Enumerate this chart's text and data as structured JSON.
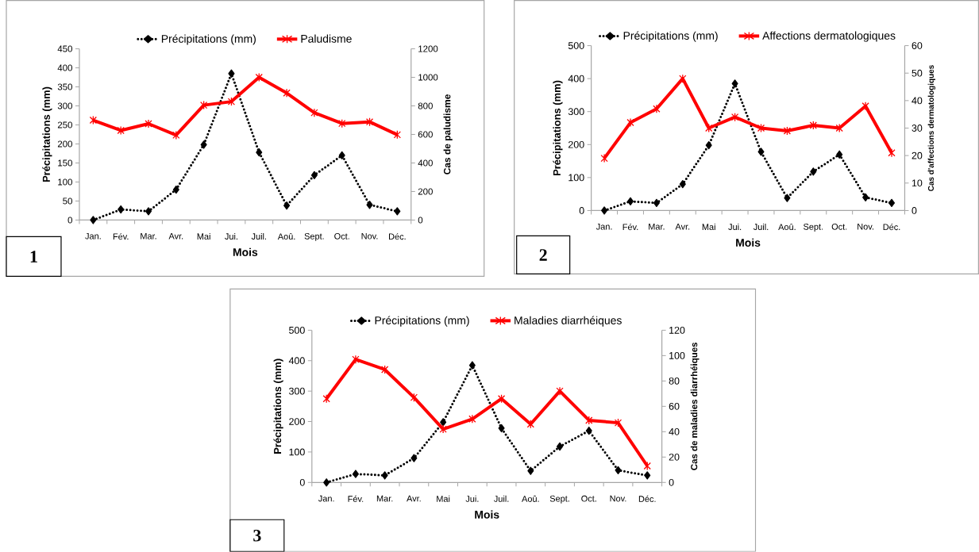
{
  "chart_data": [
    {
      "type": "line",
      "categories": [
        "Jan.",
        "Fév.",
        "Mar.",
        "Avr.",
        "Mai",
        "Jui.",
        "Juil.",
        "Aoû.",
        "Sept.",
        "Oct.",
        "Nov.",
        "Déc."
      ],
      "xlabel": "Mois",
      "ylabel": "Précipitations (mm)",
      "y2label": "Cas de paludisme",
      "ylim": [
        0,
        450
      ],
      "yticks": [
        0,
        50,
        100,
        150,
        200,
        250,
        300,
        350,
        400,
        450
      ],
      "y2lim": [
        0,
        1200
      ],
      "y2ticks": [
        0,
        200,
        400,
        600,
        800,
        1000,
        1200
      ],
      "legend": "top",
      "grid": false,
      "annotations": [
        "1"
      ],
      "series": [
        {
          "name": "Précipitations (mm)",
          "color": "#000000",
          "marker": "diamond",
          "line_style": "dotted",
          "values": [
            0,
            28,
            23,
            80,
            198,
            385,
            178,
            38,
            118,
            170,
            40,
            23
          ]
        },
        {
          "name": "Paludisme",
          "color": "#ff0000",
          "marker": "cross",
          "line_style": "solid",
          "axis": "y2",
          "values": [
            700,
            628,
            675,
            595,
            805,
            830,
            1000,
            890,
            752,
            677,
            688,
            598
          ]
        }
      ]
    },
    {
      "type": "line",
      "categories": [
        "Jan.",
        "Fév.",
        "Mar.",
        "Avr.",
        "Mai",
        "Jui.",
        "Juil.",
        "Aoû.",
        "Sept.",
        "Oct.",
        "Nov.",
        "Déc."
      ],
      "xlabel": "Mois",
      "ylabel": "Précipitations (mm)",
      "y2label": "Cas d'affections dermatologiques",
      "ylim": [
        0,
        500
      ],
      "yticks": [
        0,
        100,
        200,
        300,
        400,
        500
      ],
      "y2lim": [
        0,
        60
      ],
      "y2ticks": [
        0,
        10,
        20,
        30,
        40,
        50,
        60
      ],
      "legend": "top",
      "grid": false,
      "annotations": [
        "2"
      ],
      "series": [
        {
          "name": "Précipitations (mm)",
          "color": "#000000",
          "marker": "diamond",
          "line_style": "dotted",
          "values": [
            0,
            28,
            23,
            80,
            198,
            385,
            178,
            38,
            118,
            170,
            40,
            23
          ]
        },
        {
          "name": "Affections dermatologiques",
          "color": "#ff0000",
          "marker": "cross",
          "line_style": "solid",
          "axis": "y2",
          "values": [
            19,
            32,
            37,
            48,
            30,
            34,
            30,
            29,
            31,
            30,
            38,
            21
          ]
        }
      ]
    },
    {
      "type": "line",
      "categories": [
        "Jan.",
        "Fév.",
        "Mar.",
        "Avr.",
        "Mai",
        "Jui.",
        "Juil.",
        "Aoû.",
        "Sept.",
        "Oct.",
        "Nov.",
        "Déc."
      ],
      "xlabel": "Mois",
      "ylabel": "Précipitations (mm)",
      "y2label": "Cas de maladies diarrhéiques",
      "ylim": [
        0,
        500
      ],
      "yticks": [
        0,
        100,
        200,
        300,
        400,
        500
      ],
      "y2lim": [
        0,
        120
      ],
      "y2ticks": [
        0,
        20,
        40,
        60,
        80,
        100,
        120
      ],
      "legend": "top",
      "grid": false,
      "annotations": [
        "3"
      ],
      "series": [
        {
          "name": "Précipitations (mm)",
          "color": "#000000",
          "marker": "diamond",
          "line_style": "dotted",
          "values": [
            0,
            28,
            23,
            80,
            198,
            385,
            178,
            38,
            118,
            170,
            40,
            23
          ]
        },
        {
          "name": "Maladies diarrhéiques",
          "color": "#ff0000",
          "marker": "cross",
          "line_style": "solid",
          "axis": "y2",
          "values": [
            66,
            97,
            89,
            67,
            42,
            50,
            66,
            46,
            72,
            49,
            47,
            13
          ]
        }
      ]
    }
  ]
}
